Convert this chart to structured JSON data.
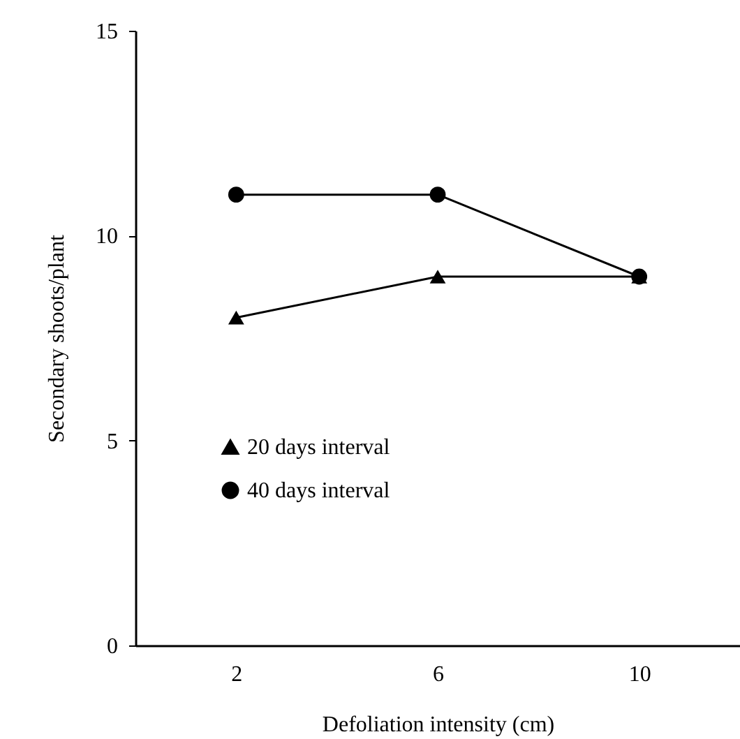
{
  "chart_data": {
    "type": "line",
    "xlabel": "Defoliation intensity (cm)",
    "ylabel": "Secondary shoots/plant",
    "categories": [
      "2",
      "6",
      "10"
    ],
    "series": [
      {
        "name": "20 days interval",
        "color": "#000000",
        "marker": "triangle",
        "values": [
          8,
          9,
          9
        ]
      },
      {
        "name": "40 days interval",
        "color": "#000000",
        "marker": "circle",
        "values": [
          11,
          11,
          9
        ]
      }
    ],
    "ylim": [
      0,
      15
    ],
    "yticks": [
      0,
      5,
      10,
      15
    ],
    "grid": false,
    "legend": "bottom left",
    "line_style": "solid"
  }
}
